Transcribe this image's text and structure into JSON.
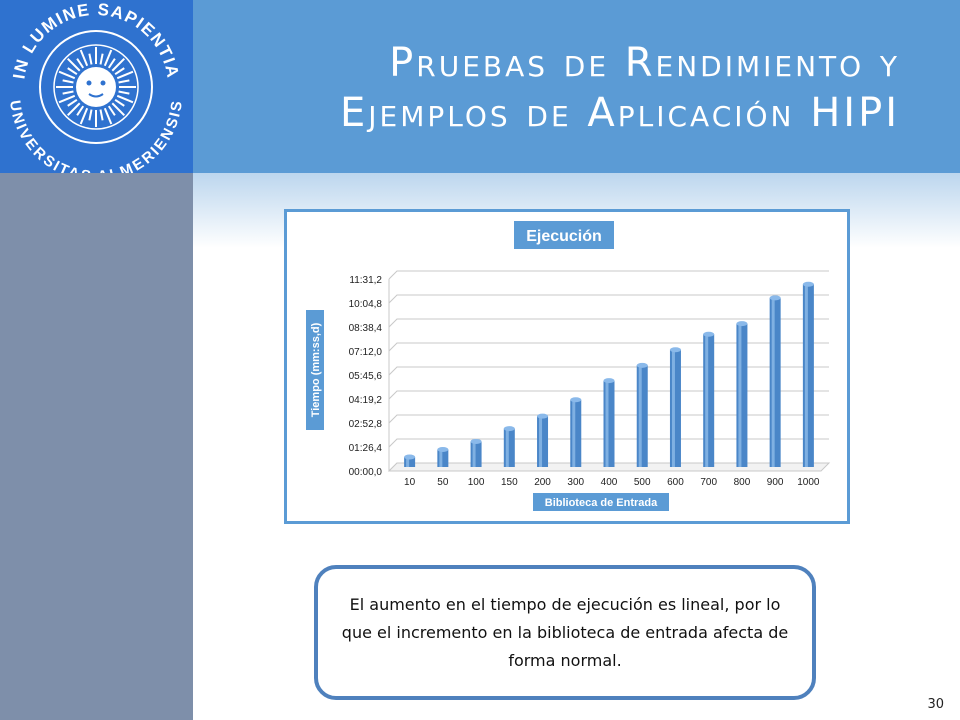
{
  "slide": {
    "title_line1": "Pruebas de Rendimiento y",
    "title_line2": "Ejemplos de Aplicación HIPI",
    "logo_text_top": "IN LUMINE SAPIENTIA",
    "logo_text_bottom": "UNIVERSITAS ALMERIENSIS",
    "body_text": "El aumento en el tiempo de ejecución es lineal, por lo que el incremento en la biblioteca de entrada afecta de forma normal.",
    "page_number": "30"
  },
  "colors": {
    "header": "#5b9bd5",
    "logo_bg": "#2f72cf",
    "left_band": "#7e8faa",
    "bar": "#4a86c8",
    "label_bg": "#5b9bd5"
  },
  "chart_data": {
    "type": "bar",
    "title": "Ejecución",
    "xlabel": "Biblioteca de Entrada",
    "ylabel": "Tiempo (mm:ss,d)",
    "categories": [
      "10",
      "50",
      "100",
      "150",
      "200",
      "300",
      "400",
      "500",
      "600",
      "700",
      "800",
      "900",
      "1000"
    ],
    "values": [
      36,
      63,
      92,
      138,
      183,
      242,
      311,
      366,
      422,
      478,
      516,
      609,
      658
    ],
    "value_unit": "seconds",
    "yticks": [
      "00:00,0",
      "01:26,4",
      "02:52,8",
      "04:19,2",
      "05:45,6",
      "07:12,0",
      "08:38,4",
      "10:04,8",
      "11:31,2"
    ],
    "ylim": [
      0,
      691.2
    ],
    "grid": true,
    "legend": "none"
  }
}
